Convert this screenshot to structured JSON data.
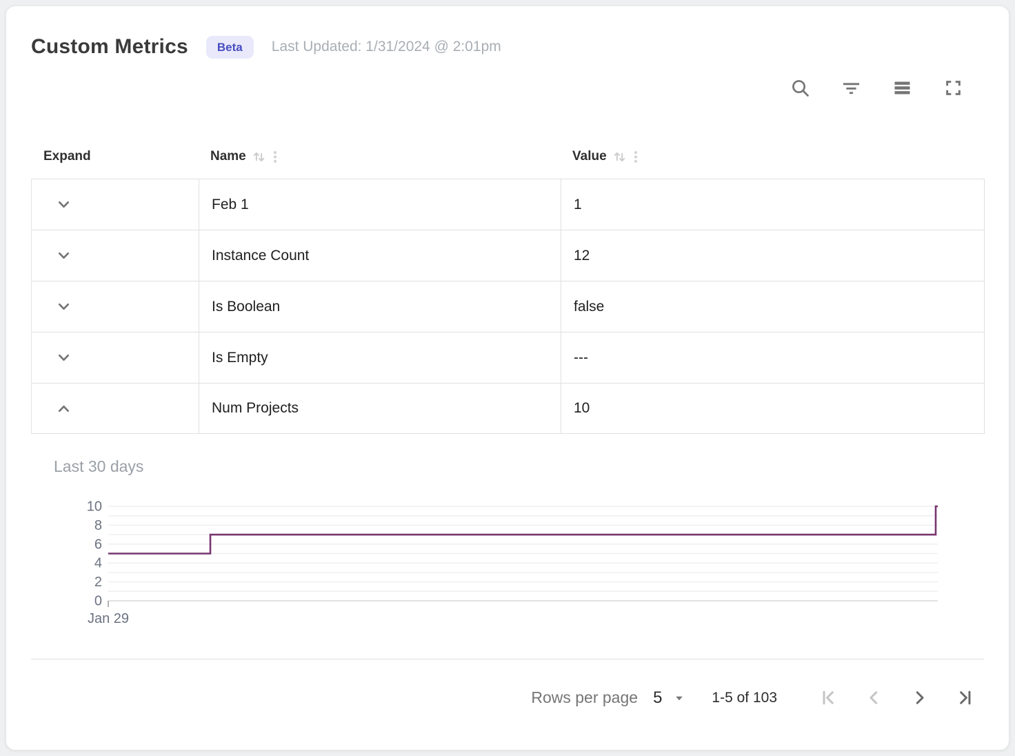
{
  "header": {
    "title": "Custom Metrics",
    "badge": "Beta",
    "last_updated": "Last Updated: 1/31/2024 @ 2:01pm"
  },
  "toolbar": {
    "icons": [
      "search-icon",
      "filter-icon",
      "density-icon",
      "fullscreen-icon"
    ],
    "icon_color": "#757575"
  },
  "table": {
    "columns": [
      {
        "label": "Expand",
        "sortable": false
      },
      {
        "label": "Name",
        "sortable": true
      },
      {
        "label": "Value",
        "sortable": true
      }
    ],
    "rows": [
      {
        "name": "Feb 1",
        "value": "1",
        "expanded": false
      },
      {
        "name": "Instance Count",
        "value": "12",
        "expanded": false
      },
      {
        "name": "Is Boolean",
        "value": "false",
        "expanded": false
      },
      {
        "name": "Is Empty",
        "value": "---",
        "expanded": false
      },
      {
        "name": "Num Projects",
        "value": "10",
        "expanded": true
      }
    ]
  },
  "chart_data": {
    "type": "line",
    "line_shape": "step",
    "title": "Last 30 days",
    "series": [
      {
        "name": "Num Projects",
        "color": "#77356e",
        "points": [
          {
            "x": 0.0,
            "y": 5
          },
          {
            "x": 0.123,
            "y": 5
          },
          {
            "x": 0.123,
            "y": 7
          },
          {
            "x": 0.9975,
            "y": 7
          },
          {
            "x": 0.9975,
            "y": 10
          },
          {
            "x": 1.0,
            "y": 10
          }
        ]
      }
    ],
    "ylim": [
      0,
      10
    ],
    "yticks": [
      0,
      2,
      4,
      6,
      8,
      10
    ],
    "minor_grid_step": 1,
    "x_tick_labels": [
      "Jan 29"
    ],
    "grid": true,
    "legend": "none"
  },
  "pagination": {
    "rows_per_page_label": "Rows per page",
    "rows_per_page_value": "5",
    "range": "1-5 of 103",
    "first_disabled": true,
    "prev_disabled": true,
    "next_disabled": false,
    "last_disabled": false,
    "enabled_color": "#696969",
    "disabled_color": "#c4c4c4"
  }
}
